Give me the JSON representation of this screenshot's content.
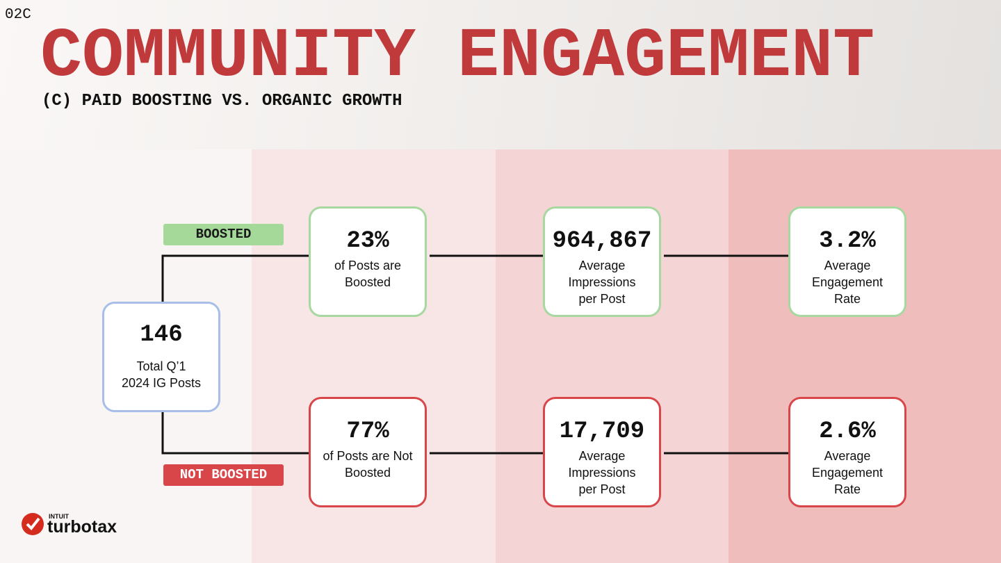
{
  "slide_number": "02C",
  "header": {
    "title": "COMMUNITY ENGAGEMENT",
    "subtitle": "(C) PAID BOOSTING VS. ORGANIC GROWTH"
  },
  "root": {
    "value": "146",
    "label": [
      "Total Q’1",
      "2024 IG Posts"
    ]
  },
  "branches": [
    {
      "label": "BOOSTED",
      "nodes": [
        {
          "value": "23%",
          "label": [
            "of Posts are",
            "Boosted"
          ]
        },
        {
          "value": "964,867",
          "label": [
            "Average",
            "Impressions",
            "per Post"
          ]
        },
        {
          "value": "3.2%",
          "label": [
            "Average",
            "Engagement",
            "Rate"
          ]
        }
      ]
    },
    {
      "label": "NOT BOOSTED",
      "nodes": [
        {
          "value": "77%",
          "label": [
            "of Posts are Not",
            "Boosted"
          ]
        },
        {
          "value": "17,709",
          "label": [
            "Average",
            "Impressions",
            "per Post"
          ]
        },
        {
          "value": "2.6%",
          "label": [
            "Average",
            "Engagement",
            "Rate"
          ]
        }
      ]
    }
  ],
  "logo": {
    "brand": "INTUIT",
    "product": "turbotax"
  }
}
